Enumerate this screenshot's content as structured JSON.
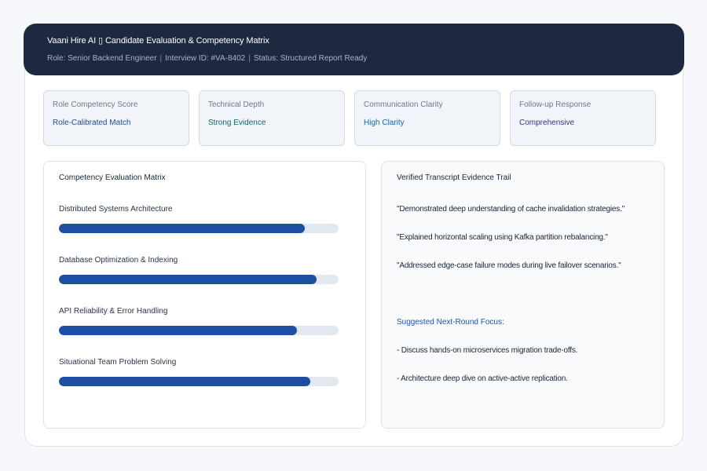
{
  "header": {
    "title": "Vaani Hire AI ▯ Candidate Evaluation & Competency Matrix",
    "role": "Role: Senior Backend Engineer",
    "interview_id": "Interview ID: #VA-8402",
    "status": "Status: Structured Report Ready",
    "separator": "|"
  },
  "metrics": [
    {
      "label": "Role Competency Score",
      "value": "Role-Calibrated Match",
      "color": "#1d4d8f"
    },
    {
      "label": "Technical Depth",
      "value": "Strong Evidence",
      "color": "#0f6a6a"
    },
    {
      "label": "Communication Clarity",
      "value": "High Clarity",
      "color": "#1565b0"
    },
    {
      "label": "Follow-up Response",
      "value": "Comprehensive",
      "color": "#3a2f8a"
    }
  ],
  "matrix": {
    "title": "Competency Evaluation Matrix",
    "skills": [
      {
        "label": "Distributed Systems Architecture",
        "level": 0.88
      },
      {
        "label": "Database Optimization & Indexing",
        "level": 0.92
      },
      {
        "label": "API Reliability & Error Handling",
        "level": 0.85
      },
      {
        "label": "Situational Team Problem Solving",
        "level": 0.9
      }
    ],
    "colors": {
      "fill": "#1e4ea1",
      "track": "#e2e8f0"
    }
  },
  "evidence": {
    "title": "Verified Transcript Evidence Trail",
    "quotes": [
      "\"Demonstrated deep understanding of cache invalidation strategies.\"",
      "\"Explained horizontal scaling using Kafka partition rebalancing.\"",
      "\"Addressed edge-case failure modes during live failover scenarios.\""
    ],
    "focus_title": "Suggested Next-Round Focus:",
    "focus_items": [
      "- Discuss hands-on microservices migration trade-offs.",
      "- Architecture deep dive on active-active replication."
    ]
  }
}
